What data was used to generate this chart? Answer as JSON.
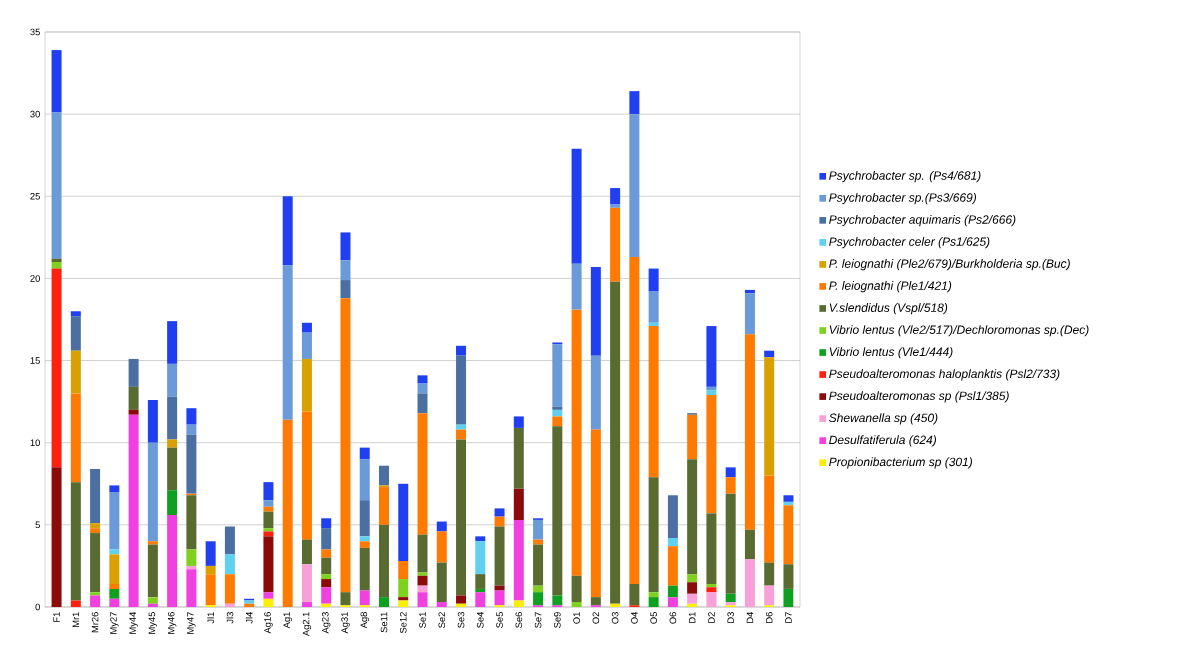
{
  "chart_data": {
    "type": "bar",
    "stacked": true,
    "grid": "y",
    "legend": "right",
    "categories": [
      "F1",
      "Mr1",
      "Mr26",
      "My27",
      "My44",
      "My45",
      "My46",
      "My47",
      "Jl1",
      "Jl3",
      "Jl4",
      "Ag16",
      "Ag1",
      "Ag2.1",
      "Ag23",
      "Ag31",
      "Ag8",
      "Se11",
      "Se12",
      "Se1",
      "Se2",
      "Se3",
      "Se4",
      "Se5",
      "Se6",
      "Se7",
      "Se9",
      "O1",
      "O2",
      "O3",
      "O4",
      "O5",
      "O6",
      "D1",
      "D2",
      "D3",
      "D4",
      "D6",
      "D7"
    ],
    "ylim": [
      0,
      35
    ],
    "yticks": [
      0,
      5,
      10,
      15,
      20,
      25,
      30,
      35
    ],
    "series": [
      {
        "name": "Propionibacterium sp (301)",
        "color": "#f8f000",
        "values": [
          0,
          0,
          0,
          0,
          0,
          0,
          0,
          0,
          0.1,
          0,
          0,
          0.5,
          0,
          0,
          0.2,
          0.1,
          0.1,
          0,
          0.4,
          0,
          0,
          0.2,
          0,
          0.1,
          0.4,
          0,
          0,
          0,
          0,
          0.2,
          0,
          0,
          0,
          0.2,
          0,
          0.1,
          0,
          0.1,
          0
        ]
      },
      {
        "name": "Desulfatiferula (624)",
        "color": "#f040e0",
        "values": [
          0,
          0,
          0.7,
          0.5,
          11.7,
          0.2,
          5.6,
          2.3,
          0,
          0,
          0,
          0.4,
          0,
          0.3,
          1.0,
          0,
          0.9,
          0,
          0,
          0.9,
          0.3,
          0,
          0.9,
          0.9,
          4.9,
          0.1,
          0.1,
          0,
          0.1,
          0,
          0,
          0,
          0.6,
          0,
          0,
          0,
          0,
          0,
          0
        ]
      },
      {
        "name": "Shewanella sp (450)",
        "color": "#f8a0d8",
        "values": [
          0,
          0,
          0,
          0,
          0,
          0,
          0,
          0.2,
          0,
          0.2,
          0,
          0,
          0,
          2.3,
          0,
          0,
          0,
          0,
          0,
          0.4,
          0,
          0,
          0,
          0,
          0,
          0,
          0,
          0,
          0,
          0,
          0,
          0,
          0,
          0.6,
          0.9,
          0.2,
          2.9,
          1.2,
          0
        ]
      },
      {
        "name": "Pseudoalteromonas sp (Psl1/385)",
        "color": "#8b0a0a",
        "values": [
          8.5,
          0,
          0,
          0,
          0.3,
          0,
          0,
          0,
          0,
          0,
          0,
          3.4,
          0,
          0,
          0.5,
          0,
          0,
          0,
          0.2,
          0.6,
          0,
          0.5,
          0,
          0.3,
          1.9,
          0,
          0,
          0,
          0,
          0,
          0,
          0,
          0,
          0.7,
          0,
          0,
          0,
          0,
          0
        ]
      },
      {
        "name": "Pseudoalteromonas haloplanktis (Psl2/733)",
        "color": "#ff2010",
        "values": [
          12.1,
          0.4,
          0,
          0,
          0,
          0,
          0,
          0,
          0,
          0,
          0,
          0.3,
          0,
          0,
          0,
          0,
          0,
          0,
          0,
          0,
          0,
          0,
          0,
          0,
          0,
          0,
          0,
          0,
          0,
          0,
          0.1,
          0,
          0,
          0,
          0.3,
          0,
          0,
          0,
          0
        ]
      },
      {
        "name": "Vibrio lentus (Vle1/444)",
        "color": "#10a020",
        "values": [
          0,
          0,
          0,
          0.6,
          0,
          0,
          1.5,
          0,
          0,
          0,
          0,
          0,
          0,
          0,
          0,
          0,
          0,
          0.6,
          0,
          0,
          0,
          0,
          0.2,
          0,
          0,
          0.8,
          0.6,
          0,
          0,
          0,
          0,
          0.6,
          0.7,
          0,
          0,
          0.5,
          0,
          0,
          1.1
        ]
      },
      {
        "name": "Vibrio lentus (Vle2/517)/Dechloromonas sp.(Dec)",
        "color": "#80d020",
        "values": [
          0.4,
          0,
          0.2,
          0,
          0,
          0.4,
          0,
          1.0,
          0,
          0,
          0,
          0.2,
          0,
          0,
          0.3,
          0,
          0,
          0,
          1.1,
          0.2,
          0,
          0,
          0,
          0,
          0,
          0.4,
          0,
          0.3,
          0,
          0,
          0,
          0.3,
          0,
          0.5,
          0.2,
          0,
          0,
          0,
          0
        ]
      },
      {
        "name": "V.slendidus (Vspl/518)",
        "color": "#5a6b32",
        "values": [
          0.2,
          7.2,
          3.6,
          0,
          1.4,
          3.2,
          2.6,
          3.3,
          0,
          0,
          0,
          1.0,
          0,
          1.5,
          1.0,
          0.8,
          2.6,
          4.4,
          0,
          2.3,
          2.4,
          9.5,
          0.9,
          3.6,
          3.7,
          2.5,
          10.3,
          1.6,
          0.5,
          19.6,
          1.3,
          7.0,
          0,
          7.0,
          4.3,
          6.1,
          1.8,
          1.4,
          1.5
        ]
      },
      {
        "name": "P.  leiognathi (Ple1/421)",
        "color": "#ff7a00",
        "values": [
          0,
          5.4,
          0.3,
          0.3,
          0,
          0.2,
          0,
          0.1,
          1.9,
          1.8,
          0.2,
          0.3,
          11.4,
          7.8,
          0.5,
          17.9,
          0.4,
          2.3,
          1.1,
          7.4,
          1.9,
          0.6,
          0,
          0.6,
          0,
          0.3,
          0.6,
          16.2,
          10.2,
          4.5,
          19.9,
          9.2,
          2.4,
          2.7,
          7.2,
          1.0,
          11.9,
          5.3,
          3.6
        ]
      },
      {
        "name": "P. leiognathi (Ple2/679)/Burkholderia sp.(Buc)",
        "color": "#d8a000",
        "values": [
          0,
          2.6,
          0.3,
          1.8,
          0,
          0,
          0.5,
          0,
          0.5,
          0,
          0,
          0,
          0,
          3.2,
          0,
          0,
          0,
          0.1,
          0,
          0,
          0,
          0,
          0,
          0,
          0,
          0,
          0,
          0,
          0,
          0,
          0,
          0,
          0,
          0,
          0,
          0,
          0,
          7.2,
          0
        ]
      },
      {
        "name": "Psychrobacter celer (Ps1/625)",
        "color": "#5fd0ee",
        "values": [
          0,
          0,
          0,
          0.3,
          0,
          0,
          0,
          0,
          0,
          1.2,
          0.2,
          0,
          0,
          0,
          0,
          0,
          0.3,
          0,
          0,
          0,
          0,
          0.3,
          2.0,
          0,
          0,
          0,
          0.4,
          0,
          0,
          0,
          0,
          0.2,
          0.5,
          0,
          0.3,
          0,
          0,
          0,
          0.2
        ]
      },
      {
        "name": "Psychrobacter aquimaris (Ps2/666)",
        "color": "#4a6fa0",
        "values": [
          0,
          2.1,
          3.3,
          0,
          1.7,
          0,
          2.6,
          3.6,
          0,
          1.7,
          0,
          0,
          0,
          0,
          1.3,
          1.1,
          2.2,
          1.2,
          0,
          1.2,
          0,
          4.2,
          0,
          0,
          0,
          0,
          0.2,
          0,
          0,
          0,
          0,
          0,
          2.6,
          0.1,
          0,
          0,
          0,
          0,
          0
        ]
      },
      {
        "name": "Psychrobacter sp.(Ps3/669)",
        "color": "#6a9ad8",
        "values": [
          8.9,
          0,
          0,
          3.5,
          0,
          6.0,
          2.0,
          0.6,
          0,
          0,
          0,
          0.4,
          9.4,
          1.6,
          0,
          1.2,
          2.5,
          0,
          0,
          0.6,
          0,
          0,
          0,
          0,
          0,
          1.2,
          3.8,
          2.8,
          4.5,
          0.2,
          8.7,
          1.9,
          0,
          0,
          0.2,
          0,
          2.5,
          0,
          0
        ]
      },
      {
        "name": "Psychrobacter sp. (Ps4/681)",
        "color": "#1f3ff0",
        "values": [
          3.8,
          0.3,
          0,
          0.4,
          0,
          2.6,
          2.6,
          1.0,
          1.5,
          0,
          0.1,
          1.1,
          4.2,
          0.6,
          0.6,
          1.7,
          0.7,
          0,
          4.7,
          0.5,
          0.6,
          0.6,
          0.3,
          0.5,
          0.7,
          0.1,
          0.1,
          7.0,
          5.4,
          1.0,
          1.4,
          1.4,
          0,
          0,
          3.7,
          0.6,
          0.2,
          0.4,
          0.4
        ]
      }
    ]
  }
}
